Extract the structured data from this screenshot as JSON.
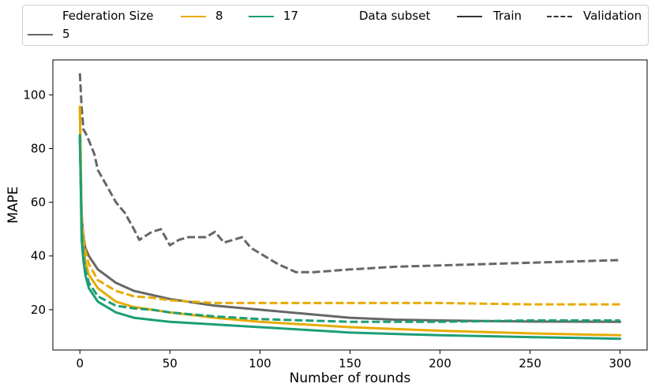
{
  "chart_data": {
    "type": "line",
    "xlabel": "Number of rounds",
    "ylabel": "MAPE",
    "xlim": [
      -15,
      315
    ],
    "ylim": [
      5,
      113
    ],
    "xticks": [
      0,
      50,
      100,
      150,
      200,
      250,
      300
    ],
    "yticks": [
      20,
      40,
      60,
      80,
      100
    ],
    "grid": false,
    "legend": {
      "placement": "top",
      "hue_title": "Federation Size",
      "style_title": "Data subset",
      "hue_entries": [
        {
          "label": "5",
          "color": "#666666"
        },
        {
          "label": "8",
          "color": "#E6AB02"
        },
        {
          "label": "17",
          "color": "#1B9E77"
        }
      ],
      "style_entries": [
        {
          "label": "Train",
          "dash": "solid"
        },
        {
          "label": "Validation",
          "dash": "dashed"
        }
      ]
    },
    "series": [
      {
        "federation_size": "5",
        "subset": "Train",
        "color": "#666666",
        "dash": "solid",
        "x": [
          0,
          1,
          2,
          3,
          5,
          10,
          20,
          30,
          50,
          75,
          100,
          125,
          150,
          175,
          200,
          250,
          300
        ],
        "y": [
          83,
          55,
          47,
          43,
          40,
          35,
          30,
          27,
          24,
          21.5,
          20,
          18.5,
          17,
          16.3,
          16,
          15.6,
          15.5
        ]
      },
      {
        "federation_size": "5",
        "subset": "Validation",
        "color": "#666666",
        "dash": "dashed",
        "x": [
          0,
          1,
          2,
          3,
          5,
          8,
          10,
          15,
          20,
          25,
          30,
          33,
          40,
          45,
          50,
          55,
          60,
          70,
          75,
          80,
          90,
          95,
          100,
          110,
          120,
          130,
          150,
          175,
          200,
          225,
          250,
          275,
          300
        ],
        "y": [
          108,
          95,
          87,
          86,
          83,
          78,
          72,
          66,
          60,
          56,
          50,
          46,
          49,
          50,
          44,
          46,
          47,
          47,
          49,
          45,
          47,
          43,
          41,
          37,
          34,
          34,
          35,
          36,
          36.5,
          37,
          37.5,
          38,
          38.5
        ]
      },
      {
        "federation_size": "8",
        "subset": "Train",
        "color": "#E6AB02",
        "dash": "solid",
        "x": [
          0,
          1,
          2,
          3,
          5,
          10,
          20,
          30,
          40,
          50,
          75,
          100,
          125,
          150,
          175,
          200,
          250,
          300
        ],
        "y": [
          95,
          52,
          43,
          38,
          33,
          28,
          23,
          21,
          20,
          19,
          17,
          15.5,
          14.5,
          13.5,
          12.8,
          12.2,
          11.2,
          10.5
        ]
      },
      {
        "federation_size": "8",
        "subset": "Validation",
        "color": "#E6AB02",
        "dash": "dashed",
        "x": [
          0,
          1,
          2,
          3,
          5,
          10,
          20,
          30,
          40,
          50,
          75,
          100,
          125,
          150,
          175,
          200,
          250,
          300
        ],
        "y": [
          96,
          55,
          46,
          42,
          37,
          31,
          27,
          25,
          24.5,
          23.5,
          22.5,
          22.5,
          22.5,
          22.5,
          22.5,
          22.5,
          22,
          22
        ]
      },
      {
        "federation_size": "17",
        "subset": "Train",
        "color": "#1B9E77",
        "dash": "solid",
        "x": [
          0,
          1,
          2,
          3,
          5,
          10,
          20,
          30,
          40,
          50,
          75,
          100,
          125,
          150,
          175,
          200,
          250,
          300
        ],
        "y": [
          85,
          46,
          38,
          33,
          28,
          23,
          19,
          17,
          16.2,
          15.5,
          14.5,
          13.5,
          12.5,
          11.5,
          11,
          10.5,
          9.8,
          9.2
        ]
      },
      {
        "federation_size": "17",
        "subset": "Validation",
        "color": "#1B9E77",
        "dash": "dashed",
        "x": [
          0,
          1,
          2,
          3,
          5,
          10,
          20,
          30,
          40,
          50,
          75,
          100,
          125,
          150,
          175,
          200,
          250,
          300
        ],
        "y": [
          85,
          48,
          40,
          35,
          30,
          25,
          21.5,
          20.5,
          20,
          19,
          17.5,
          16.5,
          16,
          15.5,
          15.5,
          15.5,
          16,
          16
        ]
      }
    ]
  }
}
